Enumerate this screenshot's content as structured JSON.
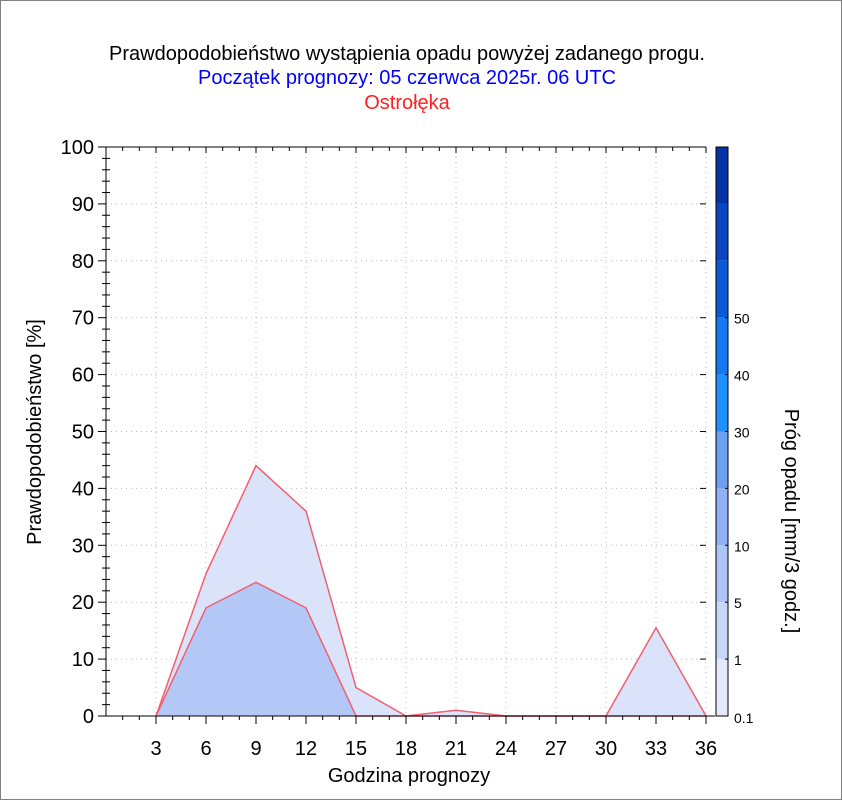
{
  "chart_data": {
    "type": "area",
    "title": "Prawdopodobieństwo wystąpienia opadu powyżej zadanego progu.",
    "subtitle": "Początek prognozy: 05 czerwca 2025r. 06 UTC",
    "location": "Ostrołęka",
    "xlabel": "Godzina prognozy",
    "ylabel": "Prawdopodobieństwo [%]",
    "colorbar_label": "Próg opadu [mm/3 godz.]",
    "x": [
      3,
      6,
      9,
      12,
      15,
      18,
      21,
      24,
      27,
      30,
      33,
      36
    ],
    "xlim": [
      0,
      36
    ],
    "ylim": [
      0,
      100
    ],
    "xticks": [
      "3",
      "6",
      "9",
      "12",
      "15",
      "18",
      "21",
      "24",
      "27",
      "30",
      "33",
      "36"
    ],
    "yticks": [
      "0",
      "10",
      "20",
      "30",
      "40",
      "50",
      "60",
      "70",
      "80",
      "90",
      "100"
    ],
    "grid": true,
    "series": [
      {
        "threshold": "0.1",
        "color": "#dbe3fb",
        "values": [
          0,
          25,
          44,
          36,
          5,
          0,
          1,
          0,
          0,
          0,
          15.5,
          0
        ]
      },
      {
        "threshold": "1",
        "color": "#b4c8f7",
        "values": [
          0,
          19,
          23.5,
          19,
          0,
          0,
          0,
          0,
          0,
          0,
          0,
          0
        ]
      }
    ],
    "line_color": "#f06070",
    "colorbar": {
      "labels": [
        "0.1",
        "1",
        "5",
        "10",
        "20",
        "30",
        "40",
        "50"
      ],
      "colors": [
        "#e4eafc",
        "#c8d6f8",
        "#afc4f6",
        "#90b1f3",
        "#6ea0f2",
        "#1e90ff",
        "#1478f0",
        "#0a5ad7",
        "#0a46c3",
        "#0532a5"
      ]
    }
  }
}
